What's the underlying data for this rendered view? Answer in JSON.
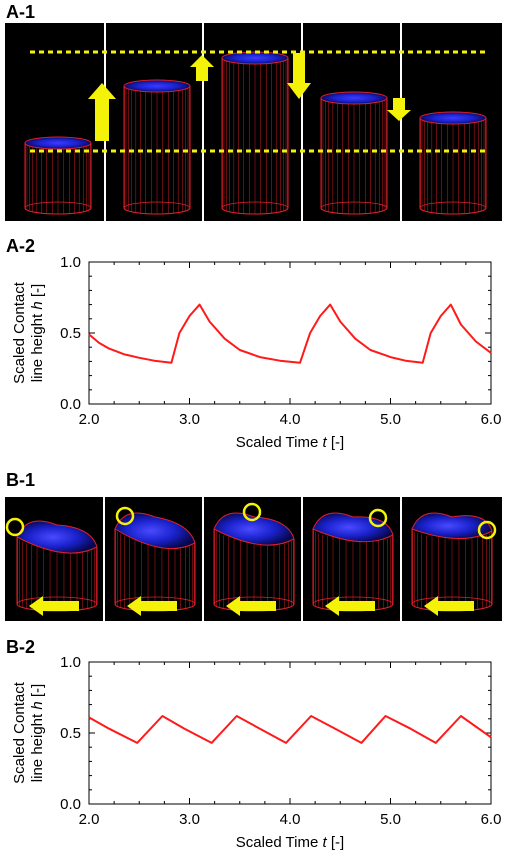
{
  "figure": {
    "panel_a1_label": "A-1",
    "panel_a2_label": "A-2",
    "panel_b1_label": "B-1",
    "panel_b2_label": "B-2"
  },
  "colors": {
    "background": "#000000",
    "frame_red": "#e0202a",
    "liquid_blue": "#2233ee",
    "arrow_yellow": "#f5f20a",
    "curve_red": "#ff1a1a"
  },
  "chart_data": [
    {
      "type": "line",
      "panel": "A-2",
      "xlabel": "Scaled Time",
      "xlabel_italic": "t",
      "xlabel_unit": "[-]",
      "ylabel_line1": "Scaled Contact",
      "ylabel_line2": "line height",
      "ylabel_italic": "h",
      "ylabel_unit": "[-]",
      "xlim": [
        2.0,
        6.0
      ],
      "ylim": [
        0.0,
        1.0
      ],
      "xticks": [
        "2.0",
        "3.0",
        "4.0",
        "5.0",
        "6.0"
      ],
      "yticks": [
        "0.0",
        "0.5",
        "1.0"
      ],
      "series": [
        {
          "color": "#ff1a1a",
          "x": [
            2.0,
            2.1,
            2.2,
            2.35,
            2.5,
            2.65,
            2.82,
            2.9,
            3.0,
            3.1,
            3.2,
            3.35,
            3.5,
            3.7,
            3.9,
            4.1,
            4.2,
            4.3,
            4.4,
            4.5,
            4.65,
            4.8,
            5.0,
            5.15,
            5.32,
            5.4,
            5.5,
            5.6,
            5.7,
            5.85,
            6.0
          ],
          "y": [
            0.49,
            0.43,
            0.39,
            0.35,
            0.325,
            0.305,
            0.29,
            0.5,
            0.62,
            0.7,
            0.58,
            0.46,
            0.38,
            0.33,
            0.305,
            0.29,
            0.5,
            0.62,
            0.7,
            0.58,
            0.46,
            0.38,
            0.33,
            0.305,
            0.29,
            0.5,
            0.62,
            0.7,
            0.56,
            0.44,
            0.36
          ]
        }
      ]
    },
    {
      "type": "line",
      "panel": "B-2",
      "xlabel": "Scaled Time",
      "xlabel_italic": "t",
      "xlabel_unit": "[-]",
      "ylabel_line1": "Scaled Contact",
      "ylabel_line2": "line height",
      "ylabel_italic": "h",
      "ylabel_unit": "[-]",
      "xlim": [
        2.0,
        6.0
      ],
      "ylim": [
        0.0,
        1.0
      ],
      "xticks": [
        "2.0",
        "3.0",
        "4.0",
        "5.0",
        "6.0"
      ],
      "yticks": [
        "0.0",
        "0.5",
        "1.0"
      ],
      "series": [
        {
          "color": "#ff1a1a",
          "x": [
            2.0,
            2.2,
            2.48,
            2.73,
            2.95,
            3.22,
            3.47,
            3.7,
            3.96,
            4.21,
            4.45,
            4.71,
            4.95,
            5.2,
            5.45,
            5.7,
            6.0
          ],
          "y": [
            0.61,
            0.53,
            0.43,
            0.62,
            0.53,
            0.43,
            0.62,
            0.53,
            0.43,
            0.62,
            0.53,
            0.43,
            0.62,
            0.53,
            0.43,
            0.62,
            0.47
          ]
        }
      ]
    }
  ]
}
